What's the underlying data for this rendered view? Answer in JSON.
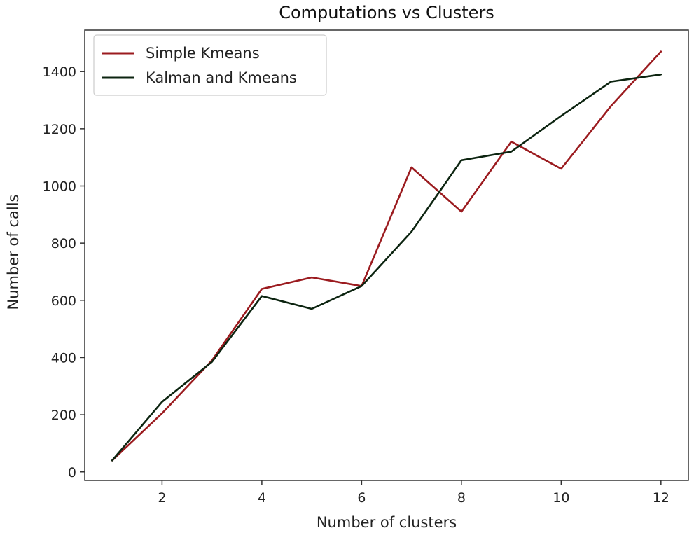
{
  "chart_data": {
    "type": "line",
    "title": "Computations vs Clusters",
    "xlabel": "Number of clusters",
    "ylabel": "Number of calls",
    "x": [
      1,
      2,
      3,
      4,
      5,
      6,
      7,
      8,
      9,
      10,
      11,
      12
    ],
    "xlim": [
      0.45,
      12.55
    ],
    "ylim": [
      -30,
      1545
    ],
    "xticks": [
      2,
      4,
      6,
      8,
      10,
      12
    ],
    "yticks": [
      0,
      200,
      400,
      600,
      800,
      1000,
      1200,
      1400
    ],
    "grid": false,
    "legend": "upper left",
    "series": [
      {
        "name": "Simple Kmeans",
        "color": "#9b1b1f",
        "values": [
          40,
          205,
          390,
          640,
          680,
          650,
          1065,
          910,
          1155,
          1060,
          1280,
          1470
        ]
      },
      {
        "name": "Kalman and Kmeans",
        "color": "#0c2410",
        "values": [
          40,
          245,
          385,
          615,
          570,
          650,
          840,
          1090,
          1120,
          1245,
          1365,
          1390
        ]
      }
    ]
  }
}
